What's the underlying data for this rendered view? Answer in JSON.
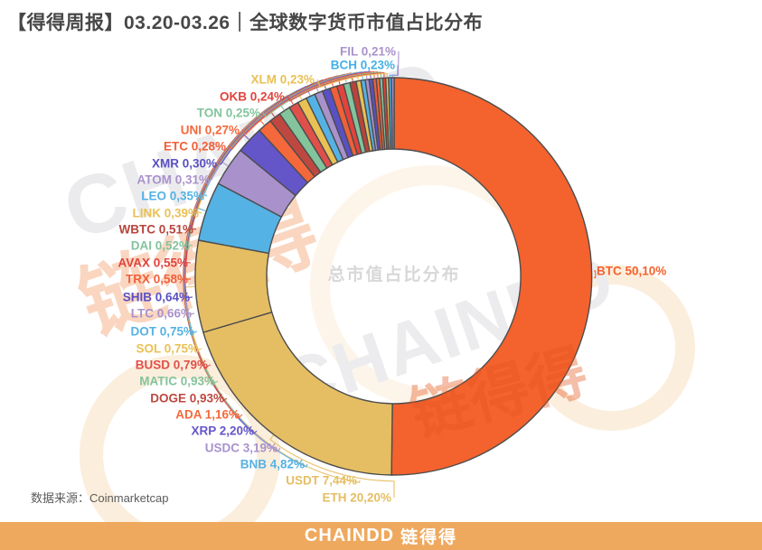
{
  "title": "【得得周报】03.20-03.26｜全球数字货币市值占比分布",
  "source": {
    "label": "数据来源：",
    "value": "Coinmarketcap"
  },
  "footer": {
    "logo": "CHAINDD",
    "logo_cn": "链得得",
    "bar_color": "#EFA95F"
  },
  "watermarks": {
    "brand": "CHAINDD",
    "brand_cn": "链得得"
  },
  "chart_data": {
    "type": "pie",
    "donut": true,
    "order": "clockwise-from-top",
    "center_label": "总市值占比分布",
    "unit": "%",
    "decimal_style": "comma",
    "slice_border_color": "#4D4D4D",
    "series": [
      {
        "label": "BTC",
        "value": 50.1,
        "pct_text": "50,10%",
        "color": "#F4622E"
      },
      {
        "label": "ETH",
        "value": 20.2,
        "pct_text": "20,20%",
        "color": "#E5BE63"
      },
      {
        "label": "USDT",
        "value": 7.44,
        "pct_text": "7,44%",
        "color": "#E5BE63"
      },
      {
        "label": "BNB",
        "value": 4.82,
        "pct_text": "4,82%",
        "color": "#55B2E4"
      },
      {
        "label": "USDC",
        "value": 3.19,
        "pct_text": "3,19%",
        "color": "#A992CC"
      },
      {
        "label": "XRP",
        "value": 2.2,
        "pct_text": "2,20%",
        "color": "#6456C8"
      },
      {
        "label": "ADA",
        "value": 1.16,
        "pct_text": "1,16%",
        "color": "#F4683C"
      },
      {
        "label": "DOGE",
        "value": 0.93,
        "pct_text": "0,93%",
        "color": "#BE4840"
      },
      {
        "label": "MATIC",
        "value": 0.93,
        "pct_text": "0,93%",
        "color": "#83C49C"
      },
      {
        "label": "BUSD",
        "value": 0.79,
        "pct_text": "0,79%",
        "color": "#E0504A"
      },
      {
        "label": "SOL",
        "value": 0.75,
        "pct_text": "0,75%",
        "color": "#E9C154"
      },
      {
        "label": "DOT",
        "value": 0.75,
        "pct_text": "0,75%",
        "color": "#55B2E4"
      },
      {
        "label": "LTC",
        "value": 0.66,
        "pct_text": "0,66%",
        "color": "#A992CC"
      },
      {
        "label": "SHIB",
        "value": 0.64,
        "pct_text": "0,64%",
        "color": "#5A50C4"
      },
      {
        "label": "TRX",
        "value": 0.58,
        "pct_text": "0,58%",
        "color": "#F15F38"
      },
      {
        "label": "AVAX",
        "value": 0.55,
        "pct_text": "0,55%",
        "color": "#E2433C"
      },
      {
        "label": "DAI",
        "value": 0.52,
        "pct_text": "0,52%",
        "color": "#83C49C"
      },
      {
        "label": "WBTC",
        "value": 0.51,
        "pct_text": "0,51%",
        "color": "#B8443C"
      },
      {
        "label": "LINK",
        "value": 0.39,
        "pct_text": "0,39%",
        "color": "#E9C154"
      },
      {
        "label": "LEO",
        "value": 0.35,
        "pct_text": "0,35%",
        "color": "#55B2E4"
      },
      {
        "label": "ATOM",
        "value": 0.31,
        "pct_text": "0,31%",
        "color": "#A992CC"
      },
      {
        "label": "XMR",
        "value": 0.3,
        "pct_text": "0,30%",
        "color": "#5A50C4"
      },
      {
        "label": "ETC",
        "value": 0.28,
        "pct_text": "0,28%",
        "color": "#F15F38"
      },
      {
        "label": "UNI",
        "value": 0.27,
        "pct_text": "0,27%",
        "color": "#F4683C"
      },
      {
        "label": "TON",
        "value": 0.25,
        "pct_text": "0,25%",
        "color": "#83C49C"
      },
      {
        "label": "OKB",
        "value": 0.24,
        "pct_text": "0,24%",
        "color": "#E2433C"
      },
      {
        "label": "XLM",
        "value": 0.23,
        "pct_text": "0,23%",
        "color": "#E9C154"
      },
      {
        "label": "BCH",
        "value": 0.23,
        "pct_text": "0,23%",
        "color": "#45B0E6"
      },
      {
        "label": "FIL",
        "value": 0.21,
        "pct_text": "0,21%",
        "color": "#A992CC"
      }
    ]
  }
}
